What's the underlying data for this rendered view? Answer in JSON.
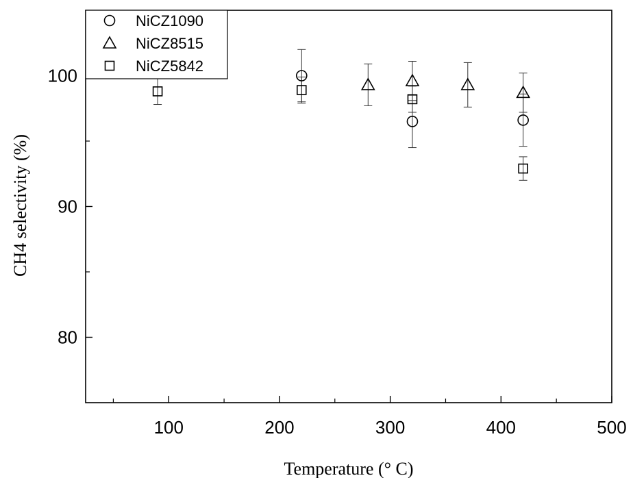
{
  "chart_data": {
    "type": "scatter",
    "xlabel": "Temperature (° C)",
    "ylabel": "CH4 selectivity (%)",
    "xlim": [
      25,
      500
    ],
    "ylim": [
      75,
      105
    ],
    "xticks": [
      100,
      200,
      300,
      400,
      500
    ],
    "xtick_labels": [
      "100",
      "200",
      "300",
      "400",
      "500"
    ],
    "x_minor_ticks": [
      50,
      150,
      250,
      350,
      450
    ],
    "yticks": [
      80,
      90,
      100
    ],
    "ytick_labels": [
      "80",
      "90",
      "100"
    ],
    "y_minor_ticks": [
      85,
      95
    ],
    "grid": false,
    "legend_position": "top-left",
    "series": [
      {
        "name": "NiCZ1090",
        "marker": "circle",
        "points": [
          {
            "x": 220,
            "y": 100.0,
            "err": 2.0
          },
          {
            "x": 320,
            "y": 96.5,
            "err": 2.0
          },
          {
            "x": 420,
            "y": 96.6,
            "err": 2.0
          }
        ]
      },
      {
        "name": "NiCZ8515",
        "marker": "triangle",
        "points": [
          {
            "x": 280,
            "y": 99.3,
            "err": 1.6
          },
          {
            "x": 320,
            "y": 99.6,
            "err": 1.5
          },
          {
            "x": 370,
            "y": 99.3,
            "err": 1.7
          },
          {
            "x": 420,
            "y": 98.7,
            "err": 1.5
          }
        ]
      },
      {
        "name": "NiCZ5842",
        "marker": "square",
        "points": [
          {
            "x": 90,
            "y": 98.8,
            "err": 1.0
          },
          {
            "x": 220,
            "y": 98.9,
            "err": 1.0
          },
          {
            "x": 320,
            "y": 98.2,
            "err": 1.0
          },
          {
            "x": 420,
            "y": 92.9,
            "err": 0.9
          }
        ]
      }
    ]
  }
}
